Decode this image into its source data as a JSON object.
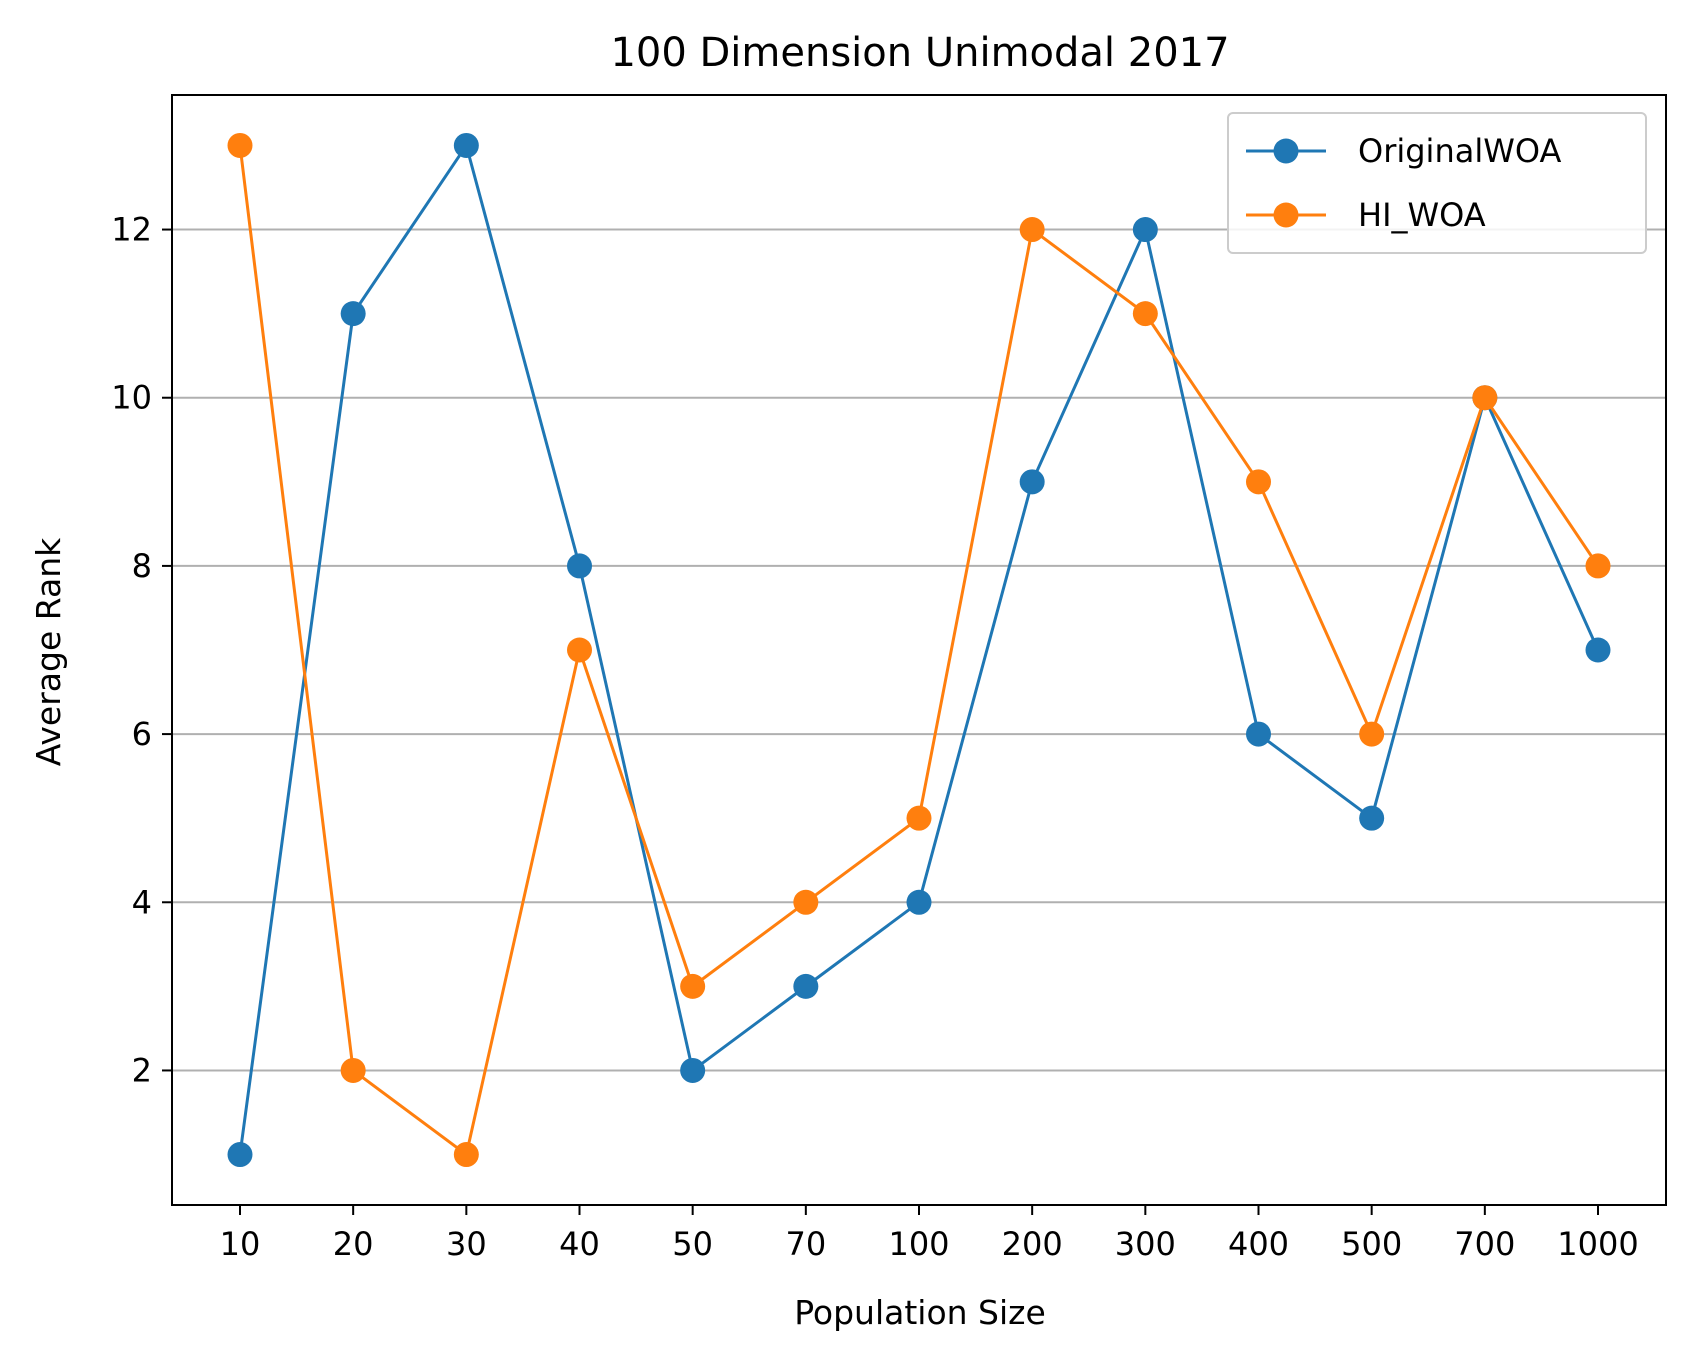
{
  "chart_data": {
    "type": "line",
    "title": "100 Dimension Unimodal 2017",
    "xlabel": "Population Size",
    "ylabel": "Average Rank",
    "categories": [
      "10",
      "20",
      "30",
      "40",
      "50",
      "70",
      "100",
      "200",
      "300",
      "400",
      "500",
      "700",
      "1000"
    ],
    "yticks": [
      2,
      4,
      6,
      8,
      10,
      12
    ],
    "ylim": [
      0.4,
      13.6
    ],
    "grid": "horizontal",
    "legend_position": "top-right",
    "series": [
      {
        "name": "OriginalWOA",
        "color": "#1f77b4",
        "marker": "circle",
        "values": [
          1,
          11,
          13,
          8,
          2,
          3,
          4,
          9,
          12,
          6,
          5,
          10,
          7
        ]
      },
      {
        "name": "HI_WOA",
        "color": "#ff7f0e",
        "marker": "circle",
        "values": [
          13,
          2,
          1,
          7,
          3,
          4,
          5,
          12,
          11,
          9,
          6,
          10,
          8
        ]
      }
    ]
  }
}
